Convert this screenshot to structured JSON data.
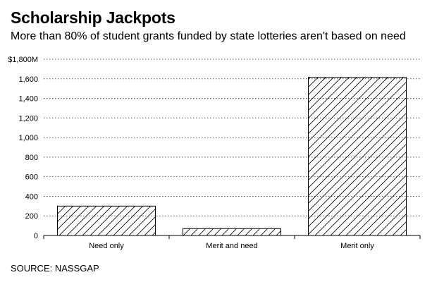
{
  "header": {
    "title": "Scholarship Jackpots",
    "subtitle": "More than 80% of student grants funded by state lotteries aren't based on need"
  },
  "footer": {
    "source": "SOURCE: NASSGAP"
  },
  "chart_data": {
    "type": "bar",
    "title": "Scholarship Jackpots",
    "subtitle": "More than 80% of student grants funded by state lotteries aren't based on need",
    "categories": [
      "Need only",
      "Merit and need",
      "Merit only"
    ],
    "values": [
      300,
      70,
      1615
    ],
    "ylim": [
      0,
      1800
    ],
    "y_ticks": [
      0,
      200,
      400,
      600,
      800,
      1000,
      1200,
      1400,
      1600,
      1800
    ],
    "y_tick_labels": [
      "0",
      "200",
      "400",
      "600",
      "800",
      "1,000",
      "1,200",
      "1,400",
      "1,600",
      "$1,800M"
    ],
    "grid": true,
    "bar_fill": "diagonal-hatch",
    "colors": {
      "bar_stroke": "#000000",
      "grid": "#555555"
    }
  }
}
